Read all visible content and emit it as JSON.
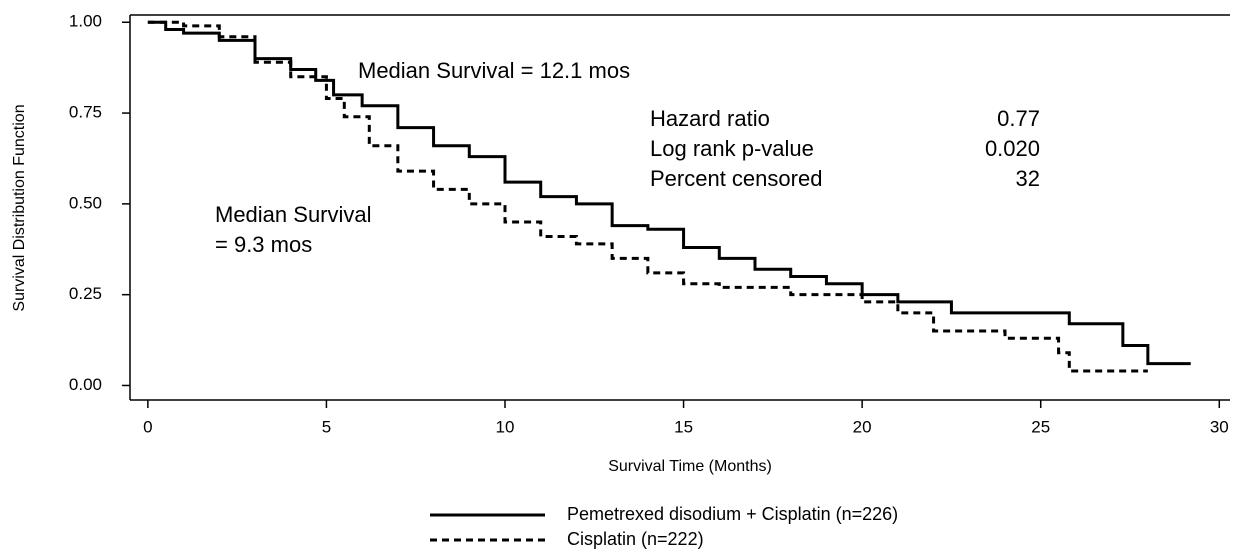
{
  "chart_data": {
    "type": "step",
    "xlabel": "Survival Time (Months)",
    "ylabel": "Survival Distribution Function",
    "xlim": [
      -0.5,
      30.3
    ],
    "ylim": [
      -0.04,
      1.02
    ],
    "xticks": [
      0,
      5,
      10,
      15,
      20,
      25,
      30
    ],
    "yticks": [
      {
        "value": 0,
        "label": "0.00"
      },
      0.25,
      {
        "value": 0.5,
        "label": "0.50"
      },
      0.75,
      {
        "value": 1,
        "label": "1.00"
      }
    ],
    "series": [
      {
        "name": "Pemetrexed disodium + Cisplatin (n=226)",
        "color": "#000000",
        "style": "solid",
        "x": [
          0,
          0.5,
          0.5,
          1,
          1,
          2,
          2,
          3,
          3,
          4,
          4,
          4.7,
          4.7,
          5.2,
          5.2,
          6,
          6,
          7,
          7,
          8,
          8,
          9,
          9,
          10,
          10,
          11,
          11,
          12,
          12,
          13,
          13,
          14,
          14,
          15,
          15,
          16,
          16,
          17,
          17,
          18,
          18,
          19,
          19,
          20,
          20,
          21,
          21,
          22.5,
          22.5,
          25.8,
          25.8,
          27.3,
          27.3,
          28,
          28,
          29.2
        ],
        "values": [
          1,
          1,
          0.98,
          0.98,
          0.97,
          0.97,
          0.95,
          0.95,
          0.9,
          0.9,
          0.87,
          0.87,
          0.84,
          0.84,
          0.8,
          0.8,
          0.77,
          0.77,
          0.71,
          0.71,
          0.66,
          0.66,
          0.63,
          0.63,
          0.56,
          0.56,
          0.52,
          0.52,
          0.5,
          0.5,
          0.44,
          0.44,
          0.43,
          0.43,
          0.38,
          0.38,
          0.35,
          0.35,
          0.32,
          0.32,
          0.3,
          0.3,
          0.28,
          0.28,
          0.25,
          0.25,
          0.23,
          0.23,
          0.2,
          0.2,
          0.17,
          0.17,
          0.11,
          0.11,
          0.06,
          0.06
        ]
      },
      {
        "name": "Cisplatin (n=222)",
        "color": "#000000",
        "style": "dashed",
        "x": [
          0,
          1,
          1,
          2,
          2,
          3,
          3,
          4,
          4,
          5,
          5,
          5.5,
          5.5,
          6.2,
          6.2,
          7,
          7,
          8,
          8,
          9,
          9,
          10,
          10,
          11,
          11,
          12,
          12,
          13,
          13,
          14,
          14,
          15,
          15,
          16,
          16,
          18,
          18,
          20,
          20,
          21,
          21,
          22,
          22,
          24,
          24,
          25.5,
          25.5,
          25.8,
          25.8,
          28
        ],
        "values": [
          1,
          1,
          0.99,
          0.99,
          0.96,
          0.96,
          0.89,
          0.89,
          0.85,
          0.85,
          0.79,
          0.79,
          0.74,
          0.74,
          0.66,
          0.66,
          0.59,
          0.59,
          0.54,
          0.54,
          0.5,
          0.5,
          0.45,
          0.45,
          0.41,
          0.41,
          0.39,
          0.39,
          0.35,
          0.35,
          0.31,
          0.31,
          0.28,
          0.28,
          0.27,
          0.27,
          0.25,
          0.25,
          0.23,
          0.23,
          0.2,
          0.2,
          0.15,
          0.15,
          0.13,
          0.13,
          0.09,
          0.09,
          0.04,
          0.04
        ]
      }
    ],
    "annotations": {
      "median_treatment": "Median Survival = 12.1 mos",
      "median_control": [
        "Median Survival",
        "= 9.3 mos"
      ],
      "stats": [
        [
          "Hazard ratio",
          "0.77"
        ],
        [
          "Log rank p-value",
          "0.020"
        ],
        [
          "Percent censored",
          "32"
        ]
      ]
    }
  }
}
